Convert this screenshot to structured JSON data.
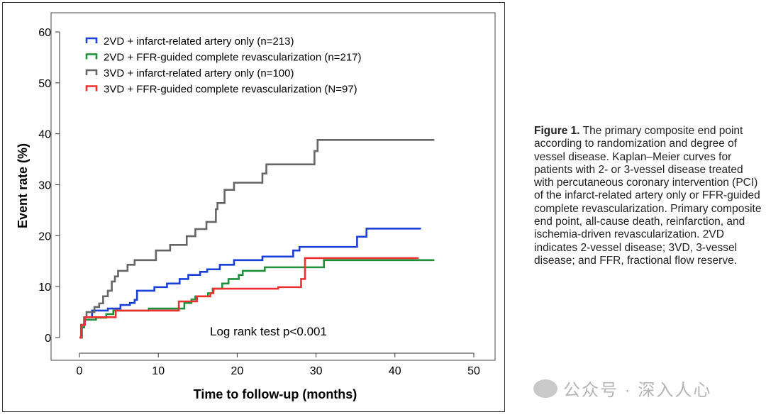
{
  "chart_data": {
    "type": "line",
    "subtype": "kaplan-meier-step",
    "xlabel": "Time to follow-up (months)",
    "ylabel": "Event rate (%)",
    "xlim": [
      0,
      50
    ],
    "ylim": [
      0,
      60
    ],
    "xticks": [
      0,
      10,
      20,
      30,
      40,
      50
    ],
    "yticks": [
      0,
      10,
      20,
      30,
      40,
      50,
      60
    ],
    "grid": false,
    "legend_position": "top-left",
    "annotation": "Log rank test p<0.001",
    "series": [
      {
        "name": "2VD + infarct-related artery only (n=213)",
        "color": "#1a3fd6",
        "points": [
          [
            0,
            0
          ],
          [
            0.3,
            2.5
          ],
          [
            0.6,
            4
          ],
          [
            1.6,
            5.3
          ],
          [
            3.6,
            5.7
          ],
          [
            5.2,
            6.4
          ],
          [
            6.4,
            6.8
          ],
          [
            7.0,
            7.4
          ],
          [
            7.3,
            9.2
          ],
          [
            9.5,
            9.9
          ],
          [
            11.1,
            10.6
          ],
          [
            12.7,
            11.5
          ],
          [
            13.8,
            12.3
          ],
          [
            15.3,
            12.9
          ],
          [
            16.2,
            13.4
          ],
          [
            17.8,
            14.3
          ],
          [
            19.6,
            15.2
          ],
          [
            23.2,
            15.9
          ],
          [
            27.1,
            17.1
          ],
          [
            27.9,
            17.8
          ],
          [
            35.2,
            19.8
          ],
          [
            36.4,
            21.4
          ],
          [
            43.3,
            21.4
          ]
        ]
      },
      {
        "name": "2VD + FFR-guided complete revascularization (n=217)",
        "color": "#1e8f3a",
        "points": [
          [
            0,
            0
          ],
          [
            0.3,
            2
          ],
          [
            0.6,
            3.5
          ],
          [
            2.1,
            3.9
          ],
          [
            3.4,
            4.6
          ],
          [
            4.3,
            5.3
          ],
          [
            8.8,
            5.7
          ],
          [
            13.3,
            6.8
          ],
          [
            14.2,
            7.5
          ],
          [
            14.7,
            8.1
          ],
          [
            16.3,
            8.7
          ],
          [
            16.9,
            9.6
          ],
          [
            18.1,
            10.6
          ],
          [
            18.9,
            11.5
          ],
          [
            20.2,
            12.3
          ],
          [
            20.7,
            13.1
          ],
          [
            23.5,
            13.8
          ],
          [
            31.0,
            15.2
          ],
          [
            45,
            15.2
          ]
        ]
      },
      {
        "name": "3VD + infarct-related artery only (n=100)",
        "color": "#666666",
        "points": [
          [
            0,
            0
          ],
          [
            0.3,
            2.5
          ],
          [
            0.6,
            4
          ],
          [
            0.9,
            5
          ],
          [
            1.9,
            6
          ],
          [
            2.5,
            6.7
          ],
          [
            3.0,
            8.1
          ],
          [
            3.6,
            9.2
          ],
          [
            4.1,
            11
          ],
          [
            4.5,
            12
          ],
          [
            4.9,
            13.1
          ],
          [
            6.1,
            14.3
          ],
          [
            7.0,
            15.2
          ],
          [
            9.7,
            17.1
          ],
          [
            11.5,
            18.2
          ],
          [
            13.6,
            19.9
          ],
          [
            14.7,
            21.3
          ],
          [
            16.1,
            22.7
          ],
          [
            17.3,
            25.2
          ],
          [
            17.5,
            26.4
          ],
          [
            18.4,
            29
          ],
          [
            19.6,
            30.4
          ],
          [
            23.2,
            32.2
          ],
          [
            23.7,
            34
          ],
          [
            29.8,
            36.6
          ],
          [
            30.2,
            38.8
          ],
          [
            45,
            38.8
          ]
        ]
      },
      {
        "name": "3VD + FFR-guided complete revascularization (N=97)",
        "color": "#f03030",
        "points": [
          [
            0,
            0
          ],
          [
            0.2,
            2.5
          ],
          [
            0.7,
            4.0
          ],
          [
            4.6,
            5.3
          ],
          [
            12.6,
            7.1
          ],
          [
            14.9,
            8.1
          ],
          [
            16.6,
            8.7
          ],
          [
            17.0,
            9.6
          ],
          [
            25.2,
            9.9
          ],
          [
            28.1,
            11.5
          ],
          [
            28.6,
            15.6
          ],
          [
            43,
            15.6
          ]
        ]
      }
    ]
  },
  "caption": {
    "label": "Figure 1.",
    "text": " The primary composite end point according to randomization and degree of vessel disease. Kaplan–Meier curves for patients with 2- or 3-vessel disease treated with percutaneous coronary intervention (PCI) of the infarct-related artery only or FFR-guided complete revascularization. Primary composite end point, all-cause death, reinfarction, and ischemia-driven revascularization. 2VD indicates 2-vessel disease; 3VD, 3-vessel disease; and FFR, fractional flow reserve."
  },
  "watermark": {
    "text": "公众号 · 深入人心",
    "icon": "wechat-icon"
  }
}
